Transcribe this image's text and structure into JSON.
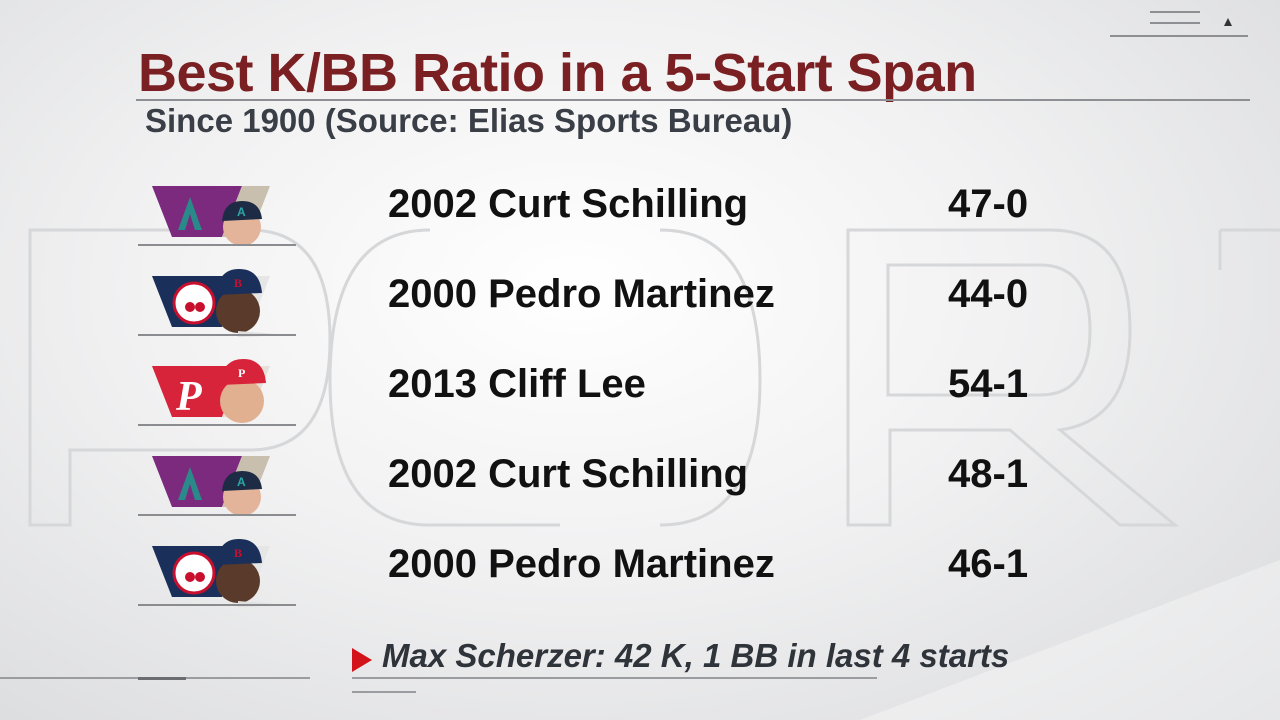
{
  "header": {
    "title": "Best K/BB Ratio in a 5-Start Span",
    "subtitle": "Since 1900 (Source: Elias Sports Bureau)"
  },
  "colors": {
    "title": "#7a1f22",
    "accent_red": "#d3131a",
    "diamondbacks": "#7b2a7e",
    "red_sox": "#1b2f5b",
    "phillies": "#d7243a"
  },
  "rows": [
    {
      "name": "2002 Curt Schilling",
      "stat": "47-0",
      "team_icon": "diamondbacks-logo-icon"
    },
    {
      "name": "2000 Pedro Martinez",
      "stat": "44-0",
      "team_icon": "red-sox-logo-icon"
    },
    {
      "name": "2013 Cliff Lee",
      "stat": "54-1",
      "team_icon": "phillies-logo-icon"
    },
    {
      "name": "2002 Curt Schilling",
      "stat": "48-1",
      "team_icon": "diamondbacks-logo-icon"
    },
    {
      "name": "2000 Pedro Martinez",
      "stat": "46-1",
      "team_icon": "red-sox-logo-icon"
    }
  ],
  "footnote": {
    "text": "Max Scherzer: 42 K, 1 BB in last 4 starts"
  }
}
